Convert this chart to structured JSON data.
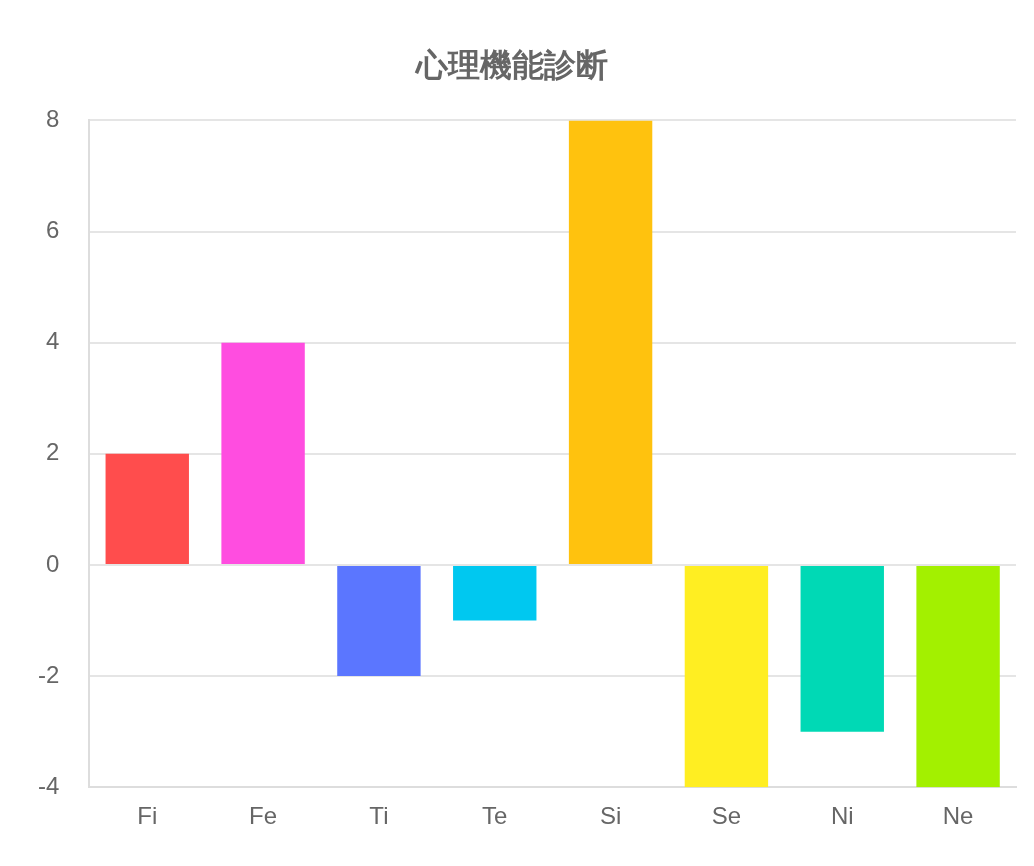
{
  "chart_data": {
    "type": "bar",
    "title": "心理機能診断",
    "categories": [
      "Fi",
      "Fe",
      "Ti",
      "Te",
      "Si",
      "Se",
      "Ni",
      "Ne"
    ],
    "values": [
      2,
      4,
      -2,
      -1,
      8,
      -4,
      -3,
      -4
    ],
    "colors": [
      "#ff4d4d",
      "#ff4de0",
      "#5b76ff",
      "#00c8f0",
      "#ffc20e",
      "#ffee22",
      "#00d9b5",
      "#a3f000"
    ],
    "ylim": [
      -4,
      8
    ],
    "yticks": [
      -4,
      -2,
      0,
      2,
      4,
      6,
      8
    ],
    "grid": "y",
    "legend": false
  }
}
